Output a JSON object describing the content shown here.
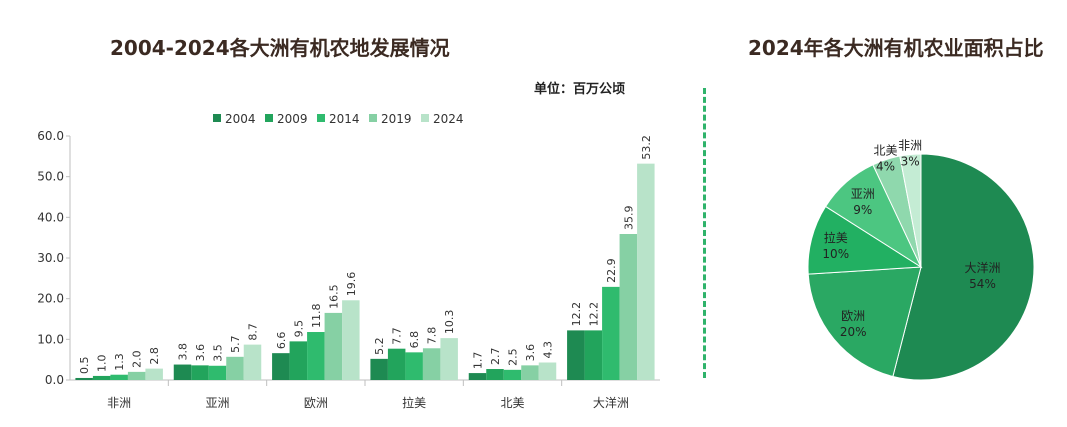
{
  "bar_chart_title": "2004-2024各大洲有机农地发展情况",
  "unit_label": "单位：百万公顷",
  "pie_chart_title": "2024年各大洲有机农业面积占比",
  "colors": {
    "series": [
      "#1e8a52",
      "#22a45c",
      "#2fbb6e",
      "#86d0a4",
      "#b8e3c9"
    ],
    "pie": [
      "#1e8a52",
      "#2aa863",
      "#22b062",
      "#4cc681",
      "#8fd8ad",
      "#c4ecd4"
    ],
    "divider": "#2fb36b"
  },
  "chart_data": [
    {
      "type": "bar",
      "title": "2004-2024各大洲有机农地发展情况",
      "unit": "百万公顷",
      "categories": [
        "非洲",
        "亚洲",
        "欧洲",
        "拉美",
        "北美",
        "大洋洲"
      ],
      "series": [
        {
          "name": "2004",
          "values": [
            0.5,
            3.8,
            6.6,
            5.2,
            1.7,
            12.2
          ]
        },
        {
          "name": "2009",
          "values": [
            1.0,
            3.6,
            9.5,
            7.7,
            2.7,
            12.2
          ]
        },
        {
          "name": "2014",
          "values": [
            1.3,
            3.5,
            11.8,
            6.8,
            2.5,
            22.9
          ]
        },
        {
          "name": "2019",
          "values": [
            2.0,
            5.7,
            16.5,
            7.8,
            3.6,
            35.9
          ]
        },
        {
          "name": "2024",
          "values": [
            2.8,
            8.7,
            19.6,
            10.3,
            4.3,
            53.2
          ]
        }
      ],
      "ylim": [
        0,
        60
      ],
      "yticks": [
        "0.0",
        "10.0",
        "20.0",
        "30.0",
        "40.0",
        "50.0",
        "60.0"
      ],
      "value_labels": [
        [
          "0.5",
          "3.8",
          "6.6",
          "5.2",
          "1.7",
          "12.2"
        ],
        [
          "1.0",
          "3.6",
          "9.5",
          "7.7",
          "2.7",
          "12.2"
        ],
        [
          "1.3",
          "3.5",
          "11.8",
          "6.8",
          "2.5",
          "22.9"
        ],
        [
          "2.0",
          "5.7",
          "16.5",
          "7.8",
          "3.6",
          "35.9"
        ],
        [
          "2.8",
          "8.7",
          "19.6",
          "10.3",
          "4.3",
          "53.2"
        ]
      ],
      "legend_position": "top",
      "grid": false
    },
    {
      "type": "pie",
      "title": "2024年各大洲有机农业面积占比",
      "slices": [
        {
          "name": "大洋洲",
          "value": 54,
          "label": "54%"
        },
        {
          "name": "欧洲",
          "value": 20,
          "label": "20%"
        },
        {
          "name": "拉美",
          "value": 10,
          "label": "10%"
        },
        {
          "name": "亚洲",
          "value": 9,
          "label": "9%"
        },
        {
          "name": "北美",
          "value": 4,
          "label": "4%"
        },
        {
          "name": "非洲",
          "value": 3,
          "label": "3%"
        }
      ],
      "start": "top",
      "direction": "clockwise"
    }
  ]
}
